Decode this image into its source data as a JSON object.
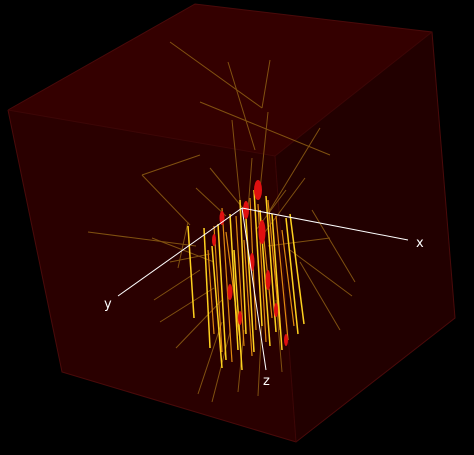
{
  "axes": {
    "x_label": "x",
    "y_label": "y",
    "z_label": "z"
  },
  "colors": {
    "background": "#000000",
    "box_front_face": "#2a0000",
    "box_top_face": "#350000",
    "box_right_face": "#230000",
    "box_edge": "#4a0808",
    "axis_line": "#ffffff",
    "track_primary": "#ffd21f",
    "track_secondary": "#e08a10",
    "track_faint": "#8a5a12",
    "hit_highlight": "#e01010"
  },
  "scene": {
    "type": "3d-particle-event-display",
    "box_faces_visible": [
      "front",
      "top",
      "right"
    ]
  }
}
